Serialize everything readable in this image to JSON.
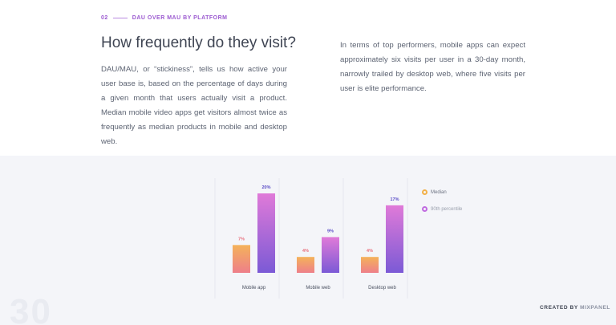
{
  "section": {
    "number": "02",
    "label": "DAU OVER MAU BY PLATFORM"
  },
  "heading": "How frequently do they visit?",
  "paragraphs": {
    "left": "DAU/MAU, or “stickiness”, tells us how active your user base is, based on the percentage of days during a given month that users actually visit a product. Median mobile video apps get visitors almost twice as frequently as median products in mobile and desktop web.",
    "right": "In terms of top performers, mobile apps can expect approximately six visits per user in a 30-day month, narrowly trailed by desktop web, where five visits per user is elite performance."
  },
  "chart_data": {
    "type": "bar",
    "categories": [
      "Mobile app",
      "Mobile web",
      "Desktop web"
    ],
    "series": [
      {
        "name": "Median",
        "values": [
          7,
          4,
          4
        ],
        "labels": [
          "7%",
          "4%",
          "4%"
        ]
      },
      {
        "name": "90th percentile",
        "values": [
          20,
          9,
          17
        ],
        "labels": [
          "20%",
          "9%",
          "17%"
        ]
      }
    ],
    "ylim": [
      0,
      20
    ],
    "grid": false,
    "legend": "right",
    "colors": {
      "median_top": "#f4b25a",
      "median_bottom": "#ee7f8a",
      "p90_top": "#e07ad8",
      "p90_bottom": "#7b5ad6",
      "median_label": "#e8707e",
      "p90_label": "#5a4cc7"
    }
  },
  "legend": {
    "median": "Median",
    "p90": "90th percentile"
  },
  "page_number": "30",
  "credit": {
    "prefix": "CREATED BY",
    "brand": "MIXPANEL"
  }
}
